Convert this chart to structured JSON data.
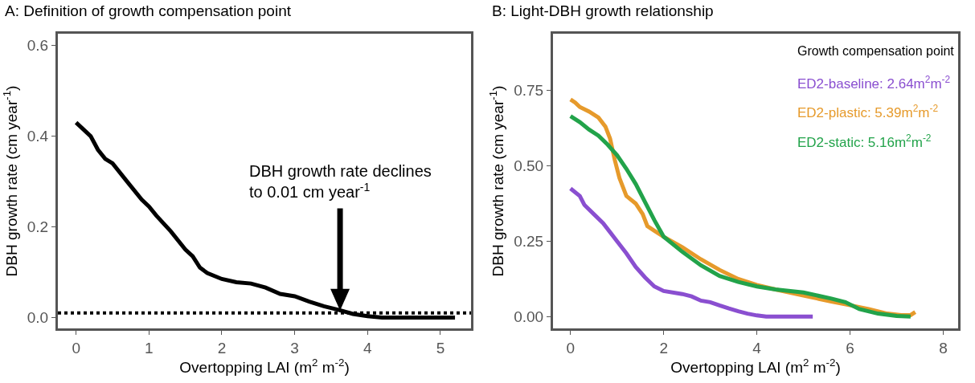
{
  "chart_data": [
    {
      "type": "line",
      "title": "A: Definition of growth compensation point",
      "xlabel": "Overtopping LAI (m$^{2}$ m$^{-2}$)",
      "ylabel": "DBH growth rate (cm year$^{-1}$)",
      "xlim": [
        -0.25,
        5.42
      ],
      "ylim": [
        -0.024,
        0.626
      ],
      "xticks": [
        0,
        1,
        2,
        3,
        4,
        5
      ],
      "yticks": [
        {
          "value": 0,
          "label": "0.0"
        },
        {
          "value": 0.2,
          "label": "0.2"
        },
        {
          "value": 0.4,
          "label": "0.4"
        },
        {
          "value": 0.6,
          "label": "0.6"
        }
      ],
      "grid": false,
      "legend": false,
      "marker": "none",
      "line_style": "solid",
      "ref_lines": [
        {
          "axis": "y",
          "value": 0.01,
          "color": "#000000",
          "line_style": "dotted"
        }
      ],
      "annotations": [
        "DBH growth rate declines\nto 0.01 cm year$^{-1}$"
      ],
      "series": [
        {
          "color": "#000000",
          "x": [
            0,
            0.2,
            0.3,
            0.4,
            0.5,
            0.7,
            0.9,
            1.0,
            1.1,
            1.3,
            1.5,
            1.6,
            1.7,
            1.8,
            2.0,
            2.2,
            2.4,
            2.6,
            2.8,
            3.0,
            3.2,
            3.4,
            3.6,
            3.8,
            4.0,
            4.2,
            4.5,
            5.2
          ],
          "values": [
            0.43,
            0.4,
            0.37,
            0.35,
            0.34,
            0.3,
            0.26,
            0.245,
            0.225,
            0.19,
            0.15,
            0.135,
            0.11,
            0.098,
            0.085,
            0.078,
            0.075,
            0.066,
            0.052,
            0.047,
            0.035,
            0.025,
            0.017,
            0.008,
            0.003,
            0,
            0,
            0
          ]
        }
      ]
    },
    {
      "type": "line",
      "title": "B: Light-DBH growth relationship",
      "xlabel": "Overtopping LAI (m$^{2}$ m$^{-2}$)",
      "ylabel": "DBH growth rate (cm year$^{-1}$)",
      "xlim": [
        -0.375,
        8.32
      ],
      "ylim": [
        -0.039,
        0.938
      ],
      "xticks": [
        0,
        2,
        4,
        6,
        8
      ],
      "yticks": [
        {
          "value": 0,
          "label": "0.00"
        },
        {
          "value": 0.25,
          "label": "0.25"
        },
        {
          "value": 0.5,
          "label": "0.50"
        },
        {
          "value": 0.75,
          "label": "0.75"
        }
      ],
      "grid": false,
      "legend": "top right",
      "legend_title": "Growth compensation point",
      "marker": "none",
      "line_style": "solid",
      "series": [
        {
          "name": "ED2-baseline: 2.64m$^{2}$m$^{-2}$",
          "color": "#8a4fd0",
          "x": [
            0,
            0.2,
            0.3,
            0.5,
            0.7,
            1.0,
            1.2,
            1.4,
            1.6,
            1.8,
            2.0,
            2.4,
            2.6,
            2.8,
            3.0,
            3.2,
            3.4,
            3.6,
            3.8,
            4.0,
            4.2,
            5.2
          ],
          "values": [
            0.425,
            0.4,
            0.37,
            0.34,
            0.31,
            0.25,
            0.21,
            0.165,
            0.13,
            0.1,
            0.085,
            0.075,
            0.067,
            0.053,
            0.048,
            0.037,
            0.027,
            0.018,
            0.01,
            0.004,
            0,
            0
          ]
        },
        {
          "name": "ED2-plastic: 5.39m$^{2}$m$^{-2}$",
          "color": "#e69a2b",
          "x": [
            0,
            0.1,
            0.2,
            0.4,
            0.6,
            0.75,
            0.85,
            0.95,
            1.05,
            1.2,
            1.4,
            1.55,
            1.65,
            1.8,
            2.0,
            2.4,
            2.8,
            3.2,
            3.6,
            4.0,
            4.4,
            5.0,
            5.6,
            6.0,
            6.4,
            6.8,
            7.1,
            7.3,
            7.4
          ],
          "values": [
            0.72,
            0.71,
            0.695,
            0.68,
            0.66,
            0.63,
            0.59,
            0.52,
            0.46,
            0.4,
            0.375,
            0.34,
            0.3,
            0.285,
            0.265,
            0.23,
            0.19,
            0.155,
            0.125,
            0.105,
            0.09,
            0.07,
            0.05,
            0.038,
            0.025,
            0.01,
            0.005,
            0.005,
            0.015
          ]
        },
        {
          "name": "ED2-static: 5.16m$^{2}$m$^{-2}$",
          "color": "#22a34a",
          "x": [
            0,
            0.2,
            0.4,
            0.6,
            0.8,
            1.0,
            1.2,
            1.4,
            1.6,
            1.8,
            2.0,
            2.4,
            2.8,
            3.2,
            3.6,
            4.0,
            4.4,
            5.0,
            5.6,
            5.9,
            6.2,
            6.6,
            7.0,
            7.3
          ],
          "values": [
            0.665,
            0.645,
            0.62,
            0.6,
            0.57,
            0.535,
            0.49,
            0.44,
            0.38,
            0.32,
            0.265,
            0.215,
            0.17,
            0.135,
            0.115,
            0.1,
            0.09,
            0.08,
            0.06,
            0.048,
            0.025,
            0.01,
            0.002,
            0
          ]
        }
      ]
    }
  ]
}
